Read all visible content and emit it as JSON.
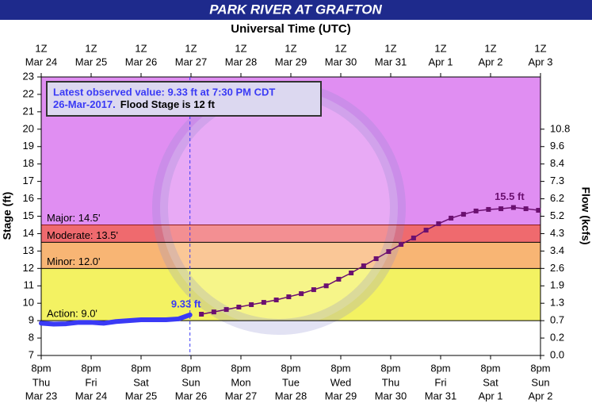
{
  "chart_data": {
    "type": "line",
    "title": "PARK RIVER AT GRAFTON",
    "x2_title": "Universal Time (UTC)",
    "ylabel": "Stage (ft)",
    "y2label": "Flow (kcfs)",
    "xlim": [
      "Mar 23 20:00",
      "Apr 2 20:00"
    ],
    "xticks": [
      {
        "value": "Mar 23 20:00",
        "label": "8pm",
        "day": "Thu",
        "date": "Mar 23"
      },
      {
        "value": "Mar 24 20:00",
        "label": "8pm",
        "day": "Fri",
        "date": "Mar 24"
      },
      {
        "value": "Mar 25 20:00",
        "label": "8pm",
        "day": "Sat",
        "date": "Mar 25"
      },
      {
        "value": "Mar 26 20:00",
        "label": "8pm",
        "day": "Sun",
        "date": "Mar 26"
      },
      {
        "value": "Mar 27 20:00",
        "label": "8pm",
        "day": "Mon",
        "date": "Mar 27"
      },
      {
        "value": "Mar 28 20:00",
        "label": "8pm",
        "day": "Tue",
        "date": "Mar 28"
      },
      {
        "value": "Mar 29 20:00",
        "label": "8pm",
        "day": "Wed",
        "date": "Mar 29"
      },
      {
        "value": "Mar 30 20:00",
        "label": "8pm",
        "day": "Thu",
        "date": "Mar 30"
      },
      {
        "value": "Mar 31 20:00",
        "label": "8pm",
        "day": "Fri",
        "date": "Mar 31"
      },
      {
        "value": "Apr 1 20:00",
        "label": "8pm",
        "day": "Sat",
        "date": "Apr 1"
      },
      {
        "value": "Apr 2 20:00",
        "label": "8pm",
        "day": "Sun",
        "date": "Apr 2"
      }
    ],
    "x2lim": [
      "Mar 24 01:00",
      "Apr 3 01:00"
    ],
    "x2ticks": [
      {
        "value": "Mar 24 01:00",
        "label": "1Z",
        "date": "Mar 24"
      },
      {
        "value": "Mar 25 01:00",
        "label": "1Z",
        "date": "Mar 25"
      },
      {
        "value": "Mar 26 01:00",
        "label": "1Z",
        "date": "Mar 26"
      },
      {
        "value": "Mar 27 01:00",
        "label": "1Z",
        "date": "Mar 27"
      },
      {
        "value": "Mar 28 01:00",
        "label": "1Z",
        "date": "Mar 28"
      },
      {
        "value": "Mar 29 01:00",
        "label": "1Z",
        "date": "Mar 29"
      },
      {
        "value": "Mar 30 01:00",
        "label": "1Z",
        "date": "Mar 30"
      },
      {
        "value": "Mar 31 01:00",
        "label": "1Z",
        "date": "Mar 31"
      },
      {
        "value": "Apr 1 01:00",
        "label": "1Z",
        "date": "Apr  1"
      },
      {
        "value": "Apr 2 01:00",
        "label": "1Z",
        "date": "Apr  2"
      },
      {
        "value": "Apr 3 01:00",
        "label": "1Z",
        "date": "Apr  3"
      }
    ],
    "ylim": [
      7,
      23
    ],
    "yticks": [
      7,
      8,
      9,
      10,
      11,
      12,
      13,
      14,
      15,
      16,
      17,
      18,
      19,
      20,
      21,
      22,
      23
    ],
    "y2ticks": [
      {
        "value": 0.0,
        "label": "0.0",
        "stage": 7
      },
      {
        "value": 0.2,
        "label": "0.2",
        "stage": 8
      },
      {
        "value": 0.7,
        "label": "0.7",
        "stage": 9
      },
      {
        "value": 1.3,
        "label": "1.3",
        "stage": 10
      },
      {
        "value": 1.9,
        "label": "1.9",
        "stage": 11
      },
      {
        "value": 2.6,
        "label": "2.6",
        "stage": 12
      },
      {
        "value": 3.4,
        "label": "3.4",
        "stage": 13
      },
      {
        "value": 4.3,
        "label": "4.3",
        "stage": 14
      },
      {
        "value": 5.2,
        "label": "5.2",
        "stage": 15
      },
      {
        "value": 6.2,
        "label": "6.2",
        "stage": 16
      },
      {
        "value": 7.3,
        "label": "7.3",
        "stage": 17
      },
      {
        "value": 8.4,
        "label": "8.4",
        "stage": 18
      },
      {
        "value": 9.6,
        "label": "9.6",
        "stage": 19
      },
      {
        "value": 10.8,
        "label": "10.8",
        "stage": 20
      }
    ],
    "flood_categories": [
      {
        "label": "Major: 14.5'",
        "value": 14.5,
        "color": "#e08ef2",
        "line_color": "#8b1a1a"
      },
      {
        "label": "Moderate: 13.5'",
        "value": 13.5,
        "color": "#ef6a6e",
        "line_color": "#000000"
      },
      {
        "label": "Minor: 12.0'",
        "value": 12.0,
        "color": "#f8b574",
        "line_color": "#000000"
      },
      {
        "label": "Action: 9.0'",
        "value": 9.0,
        "color": "#f3f262",
        "line_color": "#000000"
      }
    ],
    "annotation": {
      "line1": "Latest observed value:  9.33  ft at 7:30 PM CDT",
      "line2a": "26-Mar-2017.",
      "line2b": "Flood Stage is 12 ft"
    },
    "series": [
      {
        "color": "#3a3af5",
        "markers": false,
        "x": [
          "Mar 23 20:00",
          "Mar 24 02:00",
          "Mar 24 08:00",
          "Mar 24 14:00",
          "Mar 24 20:00",
          "Mar 25 02:00",
          "Mar 25 08:00",
          "Mar 25 14:00",
          "Mar 25 20:00",
          "Mar 26 02:00",
          "Mar 26 08:00",
          "Mar 26 14:00",
          "Mar 26 19:30"
        ],
        "values": [
          8.85,
          8.8,
          8.82,
          8.9,
          8.9,
          8.85,
          8.95,
          9.0,
          9.05,
          9.05,
          9.05,
          9.1,
          9.33
        ],
        "value_labels": [
          null,
          null,
          null,
          null,
          null,
          null,
          null,
          null,
          null,
          null,
          null,
          null,
          "9.33 ft"
        ]
      },
      {
        "color": "#6b1070",
        "markers": true,
        "x": [
          "Mar 27 01:00",
          "Mar 27 07:00",
          "Mar 27 13:00",
          "Mar 27 19:00",
          "Mar 28 01:00",
          "Mar 28 07:00",
          "Mar 28 13:00",
          "Mar 28 19:00",
          "Mar 29 01:00",
          "Mar 29 07:00",
          "Mar 29 13:00",
          "Mar 29 19:00",
          "Mar 30 01:00",
          "Mar 30 07:00",
          "Mar 30 13:00",
          "Mar 30 19:00",
          "Mar 31 01:00",
          "Mar 31 07:00",
          "Mar 31 13:00",
          "Mar 31 19:00",
          "Apr 1 01:00",
          "Apr 1 07:00",
          "Apr 1 13:00",
          "Apr 1 19:00",
          "Apr 2 01:00",
          "Apr 2 07:00",
          "Apr 2 13:00",
          "Apr 2 19:00"
        ],
        "values": [
          9.37,
          9.5,
          9.64,
          9.78,
          9.92,
          10.05,
          10.19,
          10.37,
          10.55,
          10.78,
          11.0,
          11.38,
          11.74,
          12.15,
          12.56,
          12.97,
          13.38,
          13.75,
          14.2,
          14.57,
          14.89,
          15.11,
          15.3,
          15.39,
          15.43,
          15.5,
          15.43,
          15.34
        ],
        "value_labels": [
          null,
          null,
          null,
          null,
          null,
          null,
          null,
          null,
          null,
          null,
          null,
          null,
          null,
          null,
          null,
          null,
          null,
          null,
          null,
          null,
          null,
          null,
          null,
          null,
          null,
          "15.5 ft",
          null,
          null
        ]
      }
    ]
  }
}
